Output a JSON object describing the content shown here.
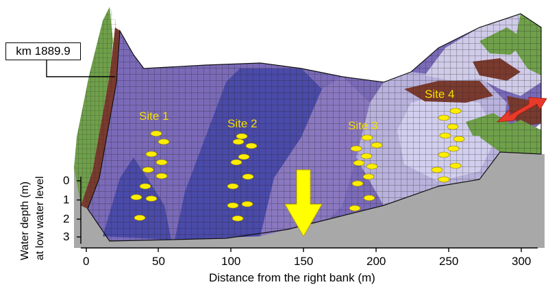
{
  "km_label": "km 1889.9",
  "y_axis": {
    "title_line1": "Water depth (m)",
    "title_line2": "at low water level",
    "ticks": [
      "0",
      "1",
      "2",
      "3"
    ]
  },
  "x_axis": {
    "title": "Distance from the right bank (m)",
    "ticks": [
      "0",
      "50",
      "100",
      "150",
      "200",
      "250",
      "300"
    ]
  },
  "sites": [
    "Site 1",
    "Site 2",
    "Site 3",
    "Site 4"
  ],
  "colors": {
    "deep_water": "#4a4aa8",
    "mid_water": "#7a6ab8",
    "shallow_water": "#b8b2dc",
    "bank_green": "#6fa04a",
    "bank_brown": "#7a3a2e",
    "riverbed_grey": "#a8a8a8",
    "markers": "#ffee00",
    "flow_arrow": "#ffff00",
    "lateral_arrow": "#e83a2a",
    "site_labels": "#f4e000"
  }
}
